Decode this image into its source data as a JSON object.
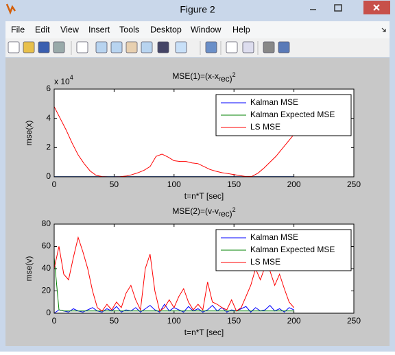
{
  "window": {
    "title": "Figure 2"
  },
  "menu": [
    "File",
    "Edit",
    "View",
    "Insert",
    "Tools",
    "Desktop",
    "Window",
    "Help"
  ],
  "chart_data": [
    {
      "type": "line",
      "title": "MSE(1)=(x-x_rec)^2",
      "x_label": "t=n*T [sec]",
      "y_label": "mse(x)",
      "y_exponent_label": "x 10^4",
      "x": [
        0,
        5,
        10,
        15,
        20,
        25,
        30,
        35,
        40,
        45,
        50,
        55,
        60,
        65,
        70,
        75,
        80,
        85,
        90,
        95,
        100,
        105,
        110,
        115,
        120,
        125,
        130,
        135,
        140,
        145,
        150,
        155,
        160,
        165,
        170,
        175,
        180,
        185,
        190,
        195,
        200
      ],
      "series": [
        {
          "name": "Kalman MSE",
          "color": "#0000ff",
          "values": [
            100,
            100,
            100,
            100,
            100,
            100,
            100,
            100,
            100,
            100,
            100,
            100,
            100,
            100,
            100,
            100,
            100,
            100,
            100,
            100,
            100,
            100,
            100,
            100,
            100,
            100,
            100,
            100,
            100,
            100,
            100,
            100,
            100,
            100,
            100,
            100,
            100,
            100,
            100,
            100,
            100
          ]
        },
        {
          "name": "Kalman Expected MSE",
          "color": "#008000",
          "values": [
            50,
            50,
            50,
            50,
            50,
            50,
            50,
            50,
            50,
            50,
            50,
            50,
            50,
            50,
            50,
            50,
            50,
            50,
            50,
            50,
            50,
            50,
            50,
            50,
            50,
            50,
            50,
            50,
            50,
            50,
            50,
            50,
            50,
            50,
            50,
            50,
            50,
            50,
            50,
            50,
            50
          ]
        },
        {
          "name": "LS MSE",
          "color": "#ff0000",
          "values": [
            48000,
            40000,
            32000,
            23000,
            15000,
            9000,
            4000,
            1000,
            200,
            0,
            0,
            100,
            500,
            1500,
            2800,
            4500,
            7000,
            14000,
            15500,
            13500,
            11000,
            10500,
            10500,
            9500,
            9000,
            7000,
            5000,
            3800,
            2800,
            2200,
            1500,
            800,
            200,
            300,
            2500,
            6000,
            10000,
            14000,
            19000,
            24000,
            29000
          ]
        }
      ],
      "xlim": [
        0,
        250
      ],
      "xticks": [
        0,
        50,
        100,
        150,
        200,
        250
      ],
      "ylim": [
        0,
        60000
      ],
      "yticks": [
        0,
        {
          "value": 20000,
          "label": "2"
        },
        {
          "value": 40000,
          "label": "4"
        },
        {
          "value": 60000,
          "label": "6"
        }
      ],
      "grid": false,
      "legend": "northeast"
    },
    {
      "type": "line",
      "title": "MSE(2)=(v-v_rec)^2",
      "x_label": "t=n*T [sec]",
      "y_label": "mse(v)",
      "x": [
        0,
        4,
        8,
        12,
        16,
        20,
        24,
        28,
        32,
        36,
        40,
        44,
        48,
        52,
        56,
        60,
        64,
        68,
        72,
        76,
        80,
        84,
        88,
        92,
        96,
        100,
        104,
        108,
        112,
        116,
        120,
        124,
        128,
        132,
        136,
        140,
        144,
        148,
        152,
        156,
        160,
        164,
        168,
        172,
        176,
        180,
        184,
        188,
        192,
        196,
        200
      ],
      "series": [
        {
          "name": "Kalman MSE",
          "color": "#0000ff",
          "values": [
            0,
            3,
            2,
            1,
            4,
            2,
            1,
            3,
            5,
            2,
            1,
            4,
            2,
            6,
            1,
            3,
            2,
            5,
            1,
            4,
            7,
            3,
            1,
            8,
            2,
            5,
            3,
            1,
            6,
            2,
            4,
            1,
            3,
            7,
            2,
            5,
            1,
            3,
            2,
            4,
            6,
            1,
            5,
            2,
            3,
            7,
            2,
            4,
            1,
            5,
            3
          ]
        },
        {
          "name": "Kalman Expected MSE",
          "color": "#008000",
          "values": [
            50,
            3,
            2,
            2,
            2,
            2,
            2,
            2,
            2,
            2,
            2,
            2,
            2,
            2,
            2,
            2,
            2,
            2,
            2,
            2,
            2,
            2,
            2,
            2,
            2,
            2,
            2,
            2,
            2,
            2,
            2,
            2,
            2,
            2,
            2,
            2,
            2,
            2,
            2,
            2,
            2,
            2,
            2,
            2,
            2,
            2,
            2,
            2,
            2,
            2,
            2
          ]
        },
        {
          "name": "LS MSE",
          "color": "#ff0000",
          "values": [
            40,
            60,
            35,
            30,
            50,
            68,
            55,
            40,
            20,
            5,
            2,
            8,
            3,
            10,
            5,
            18,
            25,
            12,
            3,
            40,
            53,
            20,
            2,
            5,
            12,
            5,
            15,
            22,
            10,
            3,
            8,
            3,
            28,
            10,
            8,
            5,
            3,
            12,
            2,
            5,
            15,
            25,
            40,
            30,
            42,
            38,
            25,
            35,
            22,
            10,
            5
          ]
        }
      ],
      "xlim": [
        0,
        250
      ],
      "xticks": [
        0,
        50,
        100,
        150,
        200,
        250
      ],
      "ylim": [
        0,
        80
      ],
      "yticks": [
        0,
        20,
        40,
        60,
        80
      ],
      "grid": false,
      "legend": "northeast"
    }
  ]
}
